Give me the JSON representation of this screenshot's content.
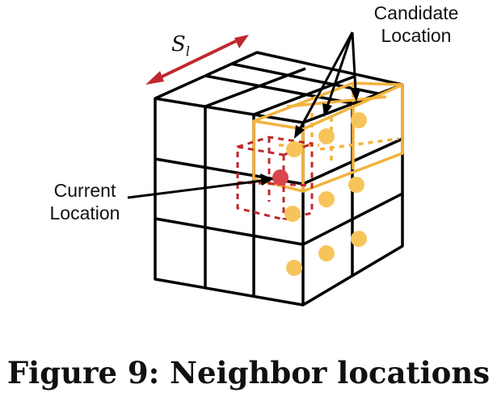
{
  "labels": {
    "candidate_line1": "Candidate",
    "candidate_line2": "Location",
    "current_line1": "Current",
    "current_line2": "Location",
    "step_symbol": "S",
    "step_subscript": "l"
  },
  "caption": "Figure 9: Neighbor locations",
  "colors": {
    "grid": "#000000",
    "candidate": "#f2b33d",
    "candidate_dot": "#f7c45c",
    "current_box": "#c0282d",
    "current_dot": "#d9454a",
    "arrow": "#c0282d"
  }
}
